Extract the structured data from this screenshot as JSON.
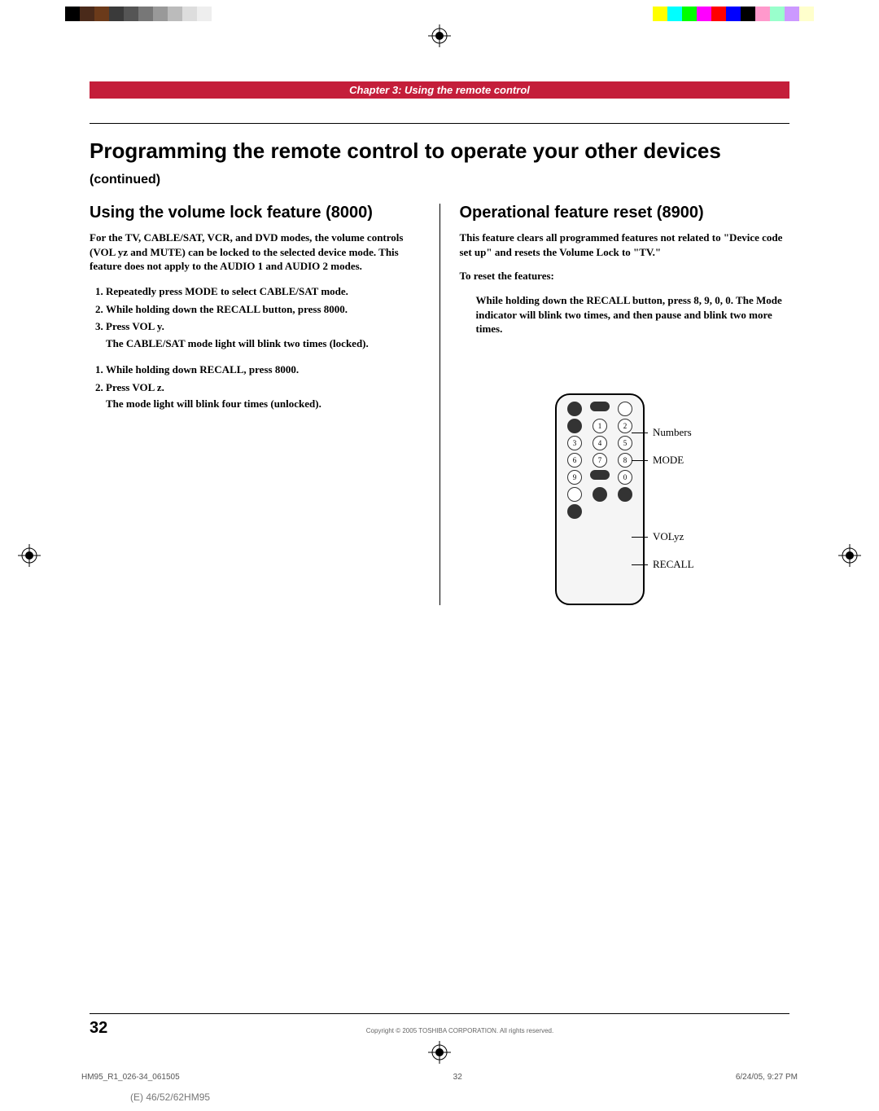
{
  "color_bars_left": [
    "#000000",
    "#4a2a1a",
    "#6b3a1a",
    "#3a3a3a",
    "#555555",
    "#777777",
    "#999999",
    "#bbbbbb",
    "#dddddd",
    "#eeeeee",
    "#ffffff"
  ],
  "color_bars_right": [
    "#ffffff",
    "#ffff00",
    "#00ffff",
    "#00ff00",
    "#ff00ff",
    "#ff0000",
    "#0000ff",
    "#000000",
    "#ff99cc",
    "#99ffcc",
    "#cc99ff",
    "#ffffcc"
  ],
  "chapter": "Chapter 3: Using the remote control",
  "title_main": "Programming the remote control to operate your other devices ",
  "title_cont": "(continued)",
  "left": {
    "heading": "Using the volume lock feature (8000)",
    "intro": "For the TV, CABLE/SAT, VCR, and DVD modes, the volume controls (VOL yz and MUTE) can be locked to the selected device mode. This feature does not apply to the AUDIO 1 and AUDIO 2 modes.",
    "lock_steps": [
      "Repeatedly press MODE to select CABLE/SAT mode.",
      "While holding down the RECALL button, press 8000.",
      "Press VOL y."
    ],
    "lock_note": "The CABLE/SAT mode light will blink two times (locked).",
    "unlock_steps": [
      "While holding down RECALL, press 8000.",
      "Press VOL z."
    ],
    "unlock_note": "The mode light will blink four times (unlocked)."
  },
  "right": {
    "heading": "Operational feature reset (8900)",
    "intro": "This feature clears all programmed features not related to \"Device code set up\" and resets the Volume Lock to \"TV.\"",
    "lead": "To reset the features:",
    "step": "While holding down the RECALL button, press 8, 9, 0, 0. The Mode indicator will blink two times, and then pause and blink two more times.",
    "labels": {
      "numbers": "Numbers",
      "mode": "MODE",
      "vol": "VOLyz",
      "recall": "RECALL"
    }
  },
  "footer": {
    "page": "32",
    "copyright": "Copyright © 2005 TOSHIBA CORPORATION. All rights reserved.",
    "doc_id": "HM95_R1_026-34_061505",
    "doc_page": "32",
    "timestamp": "6/24/05, 9:27 PM",
    "model": "(E) 46/52/62HM95"
  }
}
